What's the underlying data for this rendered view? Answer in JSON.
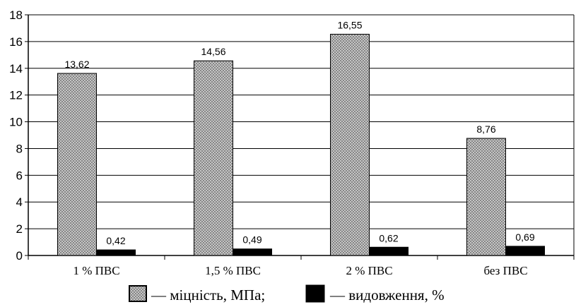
{
  "chart_data": {
    "type": "bar",
    "categories": [
      "1 % ПВС",
      "1,5 % ПВС",
      "2 % ПВС",
      "без ПВС"
    ],
    "series": [
      {
        "name": "міцність, МПа;",
        "legend_prefix": "—",
        "values": [
          13.62,
          14.56,
          16.55,
          8.76
        ],
        "value_labels": [
          "13,62",
          "14,56",
          "16,55",
          "8,76"
        ],
        "pattern": "crosshatch-gray"
      },
      {
        "name": "видовження, %",
        "legend_prefix": "—",
        "values": [
          0.42,
          0.49,
          0.62,
          0.69
        ],
        "value_labels": [
          "0,42",
          "0,49",
          "0,62",
          "0,69"
        ],
        "pattern": "solid-black"
      }
    ],
    "title": "",
    "xlabel": "",
    "ylabel": "",
    "ylim": [
      0,
      18
    ],
    "yticks": [
      0,
      2,
      4,
      6,
      8,
      10,
      12,
      14,
      16,
      18
    ],
    "grid": true,
    "legend_position": "bottom",
    "colors": {
      "bar_fill_light": "#d9d9d9",
      "bar_hatch": "#7a7a7a",
      "bar_solid": "#000000",
      "gridline": "#000000",
      "axis": "#000000"
    }
  }
}
